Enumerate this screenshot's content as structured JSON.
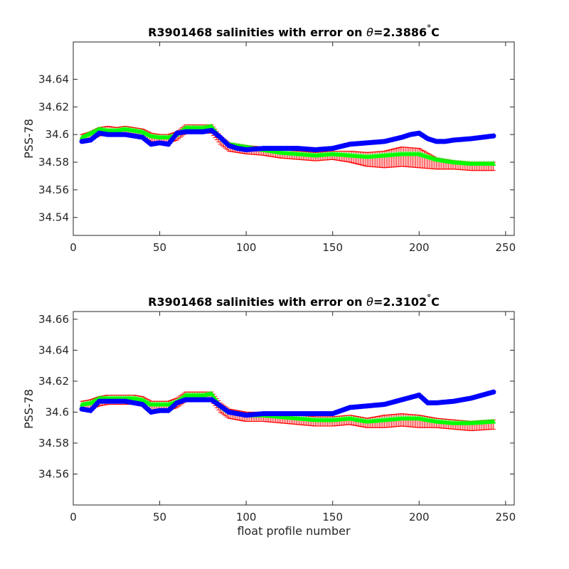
{
  "chart_data": [
    {
      "type": "scatter",
      "title": {
        "prefix": "R3901468 salinities with error on ",
        "symbol": "θ",
        "value": "=2.3886",
        "degree": "°",
        "unit": "C"
      },
      "xlabel": "",
      "ylabel": "PSS-78",
      "xlim": [
        0,
        255
      ],
      "ylim": [
        34.527,
        34.667
      ],
      "xticks": [
        0,
        50,
        100,
        150,
        200,
        250
      ],
      "xtick_labels": [
        "0",
        "50",
        "100",
        "150",
        "200",
        "250"
      ],
      "yticks": [
        34.54,
        34.56,
        34.58,
        34.6,
        34.62,
        34.64
      ],
      "ytick_labels": [
        "34.54",
        "34.56",
        "34.58",
        "34.6",
        "34.62",
        "34.64"
      ],
      "grid": false,
      "series": [
        {
          "role": "calibrated",
          "marker": "triangle",
          "color": "#00ff00",
          "x": [
            5,
            10,
            15,
            20,
            25,
            30,
            35,
            40,
            45,
            50,
            55,
            60,
            65,
            70,
            75,
            80,
            85,
            90,
            95,
            100,
            110,
            120,
            130,
            140,
            150,
            160,
            170,
            180,
            190,
            200,
            210,
            220,
            230,
            243
          ],
          "y": [
            34.598,
            34.601,
            34.604,
            34.603,
            34.603,
            34.604,
            34.603,
            34.602,
            34.599,
            34.598,
            34.598,
            34.6,
            34.605,
            34.605,
            34.605,
            34.606,
            34.598,
            34.593,
            34.592,
            34.591,
            34.589,
            34.587,
            34.586,
            34.585,
            34.586,
            34.585,
            34.584,
            34.585,
            34.586,
            34.586,
            34.582,
            34.58,
            34.579,
            34.579
          ]
        },
        {
          "role": "calibrated-error",
          "marker": "errorbar",
          "color": "#ff0000",
          "x": [
            5,
            10,
            15,
            20,
            25,
            30,
            35,
            40,
            45,
            50,
            55,
            60,
            65,
            70,
            75,
            80,
            85,
            90,
            95,
            100,
            110,
            120,
            130,
            140,
            150,
            160,
            170,
            180,
            190,
            200,
            210,
            220,
            230,
            243
          ],
          "y": [
            34.597,
            34.599,
            34.602,
            34.603,
            34.602,
            34.603,
            34.602,
            34.601,
            34.598,
            34.597,
            34.597,
            34.599,
            34.604,
            34.604,
            34.604,
            34.604,
            34.596,
            34.591,
            34.59,
            34.589,
            34.588,
            34.586,
            34.585,
            34.584,
            34.585,
            34.584,
            34.582,
            34.582,
            34.584,
            34.583,
            34.579,
            34.578,
            34.577,
            34.577
          ],
          "error": [
            0.003,
            0.003,
            0.003,
            0.003,
            0.003,
            0.003,
            0.003,
            0.003,
            0.003,
            0.003,
            0.003,
            0.003,
            0.003,
            0.003,
            0.003,
            0.003,
            0.003,
            0.003,
            0.003,
            0.003,
            0.003,
            0.003,
            0.003,
            0.003,
            0.003,
            0.004,
            0.005,
            0.006,
            0.007,
            0.007,
            0.004,
            0.003,
            0.003,
            0.003
          ]
        },
        {
          "role": "raw",
          "marker": "circle",
          "color": "#0000ff",
          "x": [
            5,
            10,
            15,
            20,
            25,
            30,
            35,
            40,
            45,
            50,
            55,
            60,
            65,
            70,
            75,
            80,
            85,
            90,
            95,
            100,
            110,
            120,
            130,
            140,
            150,
            160,
            170,
            180,
            190,
            195,
            200,
            205,
            210,
            215,
            220,
            230,
            243
          ],
          "y": [
            34.595,
            34.596,
            34.601,
            34.6,
            34.6,
            34.6,
            34.599,
            34.598,
            34.593,
            34.594,
            34.593,
            34.601,
            34.602,
            34.602,
            34.602,
            34.603,
            34.598,
            34.592,
            34.59,
            34.589,
            34.59,
            34.59,
            34.59,
            34.589,
            34.59,
            34.593,
            34.594,
            34.595,
            34.598,
            34.6,
            34.601,
            34.597,
            34.595,
            34.595,
            34.596,
            34.597,
            34.599
          ]
        }
      ]
    },
    {
      "type": "scatter",
      "title": {
        "prefix": "R3901468 salinities with error on ",
        "symbol": "θ",
        "value": "=2.3102",
        "degree": "°",
        "unit": "C"
      },
      "xlabel": "float profile number",
      "ylabel": "PSS-78",
      "xlim": [
        0,
        255
      ],
      "ylim": [
        34.54,
        34.665
      ],
      "xticks": [
        0,
        50,
        100,
        150,
        200,
        250
      ],
      "xtick_labels": [
        "0",
        "50",
        "100",
        "150",
        "200",
        "250"
      ],
      "yticks": [
        34.56,
        34.58,
        34.6,
        34.62,
        34.64,
        34.66
      ],
      "ytick_labels": [
        "34.56",
        "34.58",
        "34.6",
        "34.62",
        "34.64",
        "34.66"
      ],
      "grid": false,
      "series": [
        {
          "role": "calibrated",
          "marker": "triangle",
          "color": "#00ff00",
          "x": [
            5,
            10,
            15,
            20,
            25,
            30,
            35,
            40,
            45,
            50,
            55,
            60,
            65,
            70,
            75,
            80,
            85,
            90,
            95,
            100,
            110,
            120,
            130,
            140,
            150,
            160,
            170,
            180,
            190,
            200,
            210,
            220,
            230,
            243
          ],
          "y": [
            34.605,
            34.606,
            34.609,
            34.609,
            34.609,
            34.609,
            34.609,
            34.608,
            34.605,
            34.605,
            34.605,
            34.607,
            34.611,
            34.611,
            34.611,
            34.612,
            34.604,
            34.6,
            34.599,
            34.598,
            34.598,
            34.597,
            34.596,
            34.595,
            34.595,
            34.596,
            34.594,
            34.595,
            34.596,
            34.596,
            34.594,
            34.593,
            34.593,
            34.594
          ]
        },
        {
          "role": "calibrated-error",
          "marker": "errorbar",
          "color": "#ff0000",
          "x": [
            5,
            10,
            15,
            20,
            25,
            30,
            35,
            40,
            45,
            50,
            55,
            60,
            65,
            70,
            75,
            80,
            85,
            90,
            95,
            100,
            110,
            120,
            130,
            140,
            150,
            160,
            170,
            180,
            190,
            200,
            210,
            220,
            230,
            243
          ],
          "y": [
            34.604,
            34.605,
            34.607,
            34.608,
            34.608,
            34.608,
            34.608,
            34.607,
            34.604,
            34.604,
            34.604,
            34.606,
            34.61,
            34.61,
            34.61,
            34.61,
            34.603,
            34.599,
            34.598,
            34.597,
            34.597,
            34.596,
            34.595,
            34.594,
            34.594,
            34.595,
            34.593,
            34.594,
            34.595,
            34.594,
            34.593,
            34.592,
            34.591,
            34.592
          ],
          "error": [
            0.003,
            0.003,
            0.003,
            0.003,
            0.003,
            0.003,
            0.003,
            0.003,
            0.003,
            0.003,
            0.003,
            0.003,
            0.003,
            0.003,
            0.003,
            0.003,
            0.003,
            0.003,
            0.003,
            0.003,
            0.003,
            0.003,
            0.003,
            0.003,
            0.003,
            0.003,
            0.003,
            0.004,
            0.004,
            0.004,
            0.003,
            0.003,
            0.003,
            0.003
          ]
        },
        {
          "role": "raw",
          "marker": "circle",
          "color": "#0000ff",
          "x": [
            5,
            10,
            15,
            20,
            25,
            30,
            35,
            40,
            45,
            50,
            55,
            60,
            65,
            70,
            75,
            80,
            85,
            90,
            95,
            100,
            110,
            120,
            130,
            140,
            150,
            160,
            170,
            180,
            190,
            200,
            205,
            210,
            220,
            230,
            243
          ],
          "y": [
            34.602,
            34.601,
            34.607,
            34.607,
            34.607,
            34.607,
            34.606,
            34.605,
            34.6,
            34.601,
            34.601,
            34.606,
            34.608,
            34.608,
            34.608,
            34.608,
            34.604,
            34.6,
            34.599,
            34.598,
            34.599,
            34.599,
            34.599,
            34.599,
            34.599,
            34.603,
            34.604,
            34.605,
            34.608,
            34.611,
            34.606,
            34.606,
            34.607,
            34.609,
            34.613
          ]
        }
      ]
    }
  ]
}
